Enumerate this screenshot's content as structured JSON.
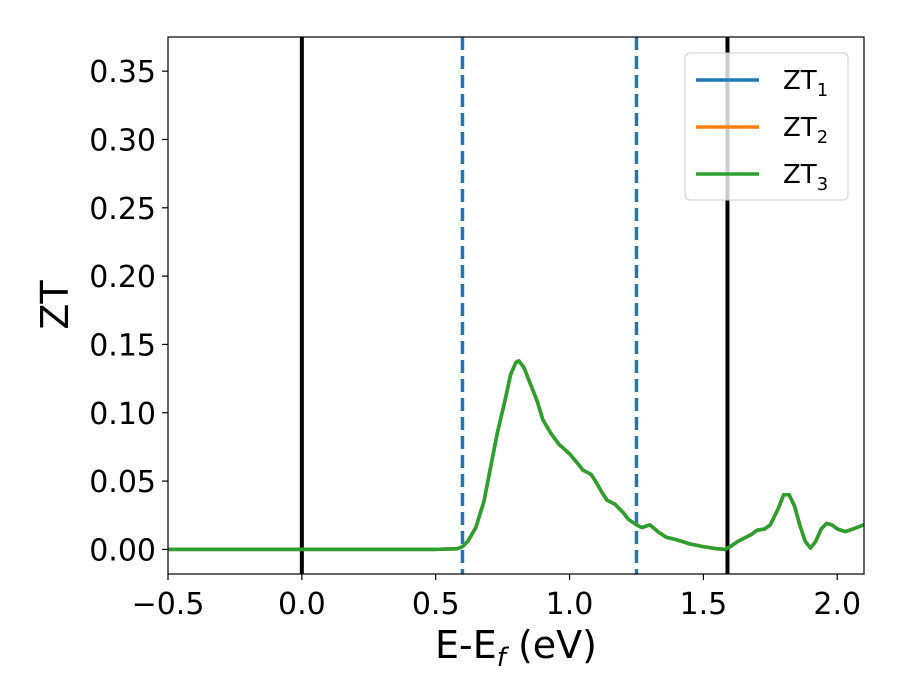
{
  "chart_data": {
    "type": "line",
    "xlabel": "E-E",
    "xlabel_sub": "f",
    "xlabel_unit": " (eV)",
    "ylabel": "ZT",
    "xlim": [
      -0.5,
      2.1
    ],
    "ylim": [
      -0.018,
      0.375
    ],
    "grid": false,
    "legend_position": "top-right",
    "xticks": [
      -0.5,
      0.0,
      0.5,
      1.0,
      1.5,
      2.0
    ],
    "xtick_labels": [
      "−0.5",
      "0.0",
      "0.5",
      "1.0",
      "1.5",
      "2.0"
    ],
    "yticks": [
      0.0,
      0.05,
      0.1,
      0.15,
      0.2,
      0.25,
      0.3,
      0.35
    ],
    "ytick_labels": [
      "0.00",
      "0.05",
      "0.10",
      "0.15",
      "0.20",
      "0.25",
      "0.30",
      "0.35"
    ],
    "vlines": [
      {
        "x": 0.0,
        "style": "solid",
        "color": "#000000"
      },
      {
        "x": 1.59,
        "style": "solid",
        "color": "#000000"
      },
      {
        "x": 0.6,
        "style": "dashed",
        "color": "#1f77b4"
      },
      {
        "x": 1.25,
        "style": "dashed",
        "color": "#1f77b4"
      }
    ],
    "series": [
      {
        "name": "ZT",
        "name_sub": "1",
        "color": "#1f77b4",
        "x": [
          -0.5,
          0.0,
          0.5,
          0.58,
          0.6,
          0.62,
          0.65,
          0.68,
          0.7,
          0.73,
          0.76,
          0.78,
          0.8,
          0.81,
          0.83,
          0.85,
          0.88,
          0.9,
          0.93,
          0.96,
          1.0,
          1.03,
          1.05,
          1.08,
          1.1,
          1.12,
          1.14,
          1.17,
          1.2,
          1.22,
          1.25,
          1.27,
          1.3,
          1.33,
          1.36,
          1.4,
          1.45,
          1.5,
          1.55,
          1.58,
          1.6,
          1.63,
          1.66,
          1.68,
          1.7,
          1.73,
          1.75,
          1.78,
          1.8,
          1.82,
          1.84,
          1.86,
          1.88,
          1.9,
          1.92,
          1.94,
          1.96,
          1.98,
          2.0,
          2.03,
          2.06,
          2.1
        ],
        "y": [
          0.0,
          0.0,
          0.0,
          0.0005,
          0.002,
          0.006,
          0.016,
          0.035,
          0.055,
          0.085,
          0.11,
          0.128,
          0.137,
          0.138,
          0.133,
          0.123,
          0.108,
          0.095,
          0.085,
          0.077,
          0.07,
          0.063,
          0.058,
          0.055,
          0.049,
          0.042,
          0.036,
          0.033,
          0.027,
          0.022,
          0.018,
          0.016,
          0.018,
          0.013,
          0.009,
          0.007,
          0.004,
          0.002,
          0.0005,
          0.0,
          0.002,
          0.006,
          0.009,
          0.011,
          0.014,
          0.015,
          0.018,
          0.03,
          0.04,
          0.04,
          0.032,
          0.018,
          0.006,
          0.001,
          0.006,
          0.015,
          0.019,
          0.018,
          0.015,
          0.013,
          0.015,
          0.018
        ]
      },
      {
        "name": "ZT",
        "name_sub": "2",
        "color": "#ff7f0e",
        "x": [
          -0.5,
          0.0,
          0.5,
          0.58,
          0.6,
          0.62,
          0.65,
          0.68,
          0.7,
          0.73,
          0.76,
          0.78,
          0.8,
          0.81,
          0.83,
          0.85,
          0.88,
          0.9,
          0.93,
          0.96,
          1.0,
          1.03,
          1.05,
          1.08,
          1.1,
          1.12,
          1.14,
          1.17,
          1.2,
          1.22,
          1.25,
          1.27,
          1.3,
          1.33,
          1.36,
          1.4,
          1.45,
          1.5,
          1.55,
          1.58,
          1.6,
          1.63,
          1.66,
          1.68,
          1.7,
          1.73,
          1.75,
          1.78,
          1.8,
          1.82,
          1.84,
          1.86,
          1.88,
          1.9,
          1.92,
          1.94,
          1.96,
          1.98,
          2.0,
          2.03,
          2.06,
          2.1
        ],
        "y": [
          0.0,
          0.0,
          0.0,
          0.0005,
          0.002,
          0.006,
          0.016,
          0.035,
          0.055,
          0.085,
          0.11,
          0.128,
          0.137,
          0.138,
          0.133,
          0.123,
          0.108,
          0.095,
          0.085,
          0.077,
          0.07,
          0.063,
          0.058,
          0.055,
          0.049,
          0.042,
          0.036,
          0.033,
          0.027,
          0.022,
          0.018,
          0.016,
          0.018,
          0.013,
          0.009,
          0.007,
          0.004,
          0.002,
          0.0005,
          0.0,
          0.002,
          0.006,
          0.009,
          0.011,
          0.014,
          0.015,
          0.018,
          0.03,
          0.04,
          0.04,
          0.032,
          0.018,
          0.006,
          0.001,
          0.006,
          0.015,
          0.019,
          0.018,
          0.015,
          0.013,
          0.015,
          0.018
        ]
      },
      {
        "name": "ZT",
        "name_sub": "3",
        "color": "#2ca02c",
        "x": [
          -0.5,
          0.0,
          0.5,
          0.58,
          0.6,
          0.62,
          0.65,
          0.68,
          0.7,
          0.73,
          0.76,
          0.78,
          0.8,
          0.81,
          0.83,
          0.85,
          0.88,
          0.9,
          0.93,
          0.96,
          1.0,
          1.03,
          1.05,
          1.08,
          1.1,
          1.12,
          1.14,
          1.17,
          1.2,
          1.22,
          1.25,
          1.27,
          1.3,
          1.33,
          1.36,
          1.4,
          1.45,
          1.5,
          1.55,
          1.58,
          1.6,
          1.63,
          1.66,
          1.68,
          1.7,
          1.73,
          1.75,
          1.78,
          1.8,
          1.82,
          1.84,
          1.86,
          1.88,
          1.9,
          1.92,
          1.94,
          1.96,
          1.98,
          2.0,
          2.03,
          2.06,
          2.1
        ],
        "y": [
          0.0,
          0.0,
          0.0,
          0.0005,
          0.002,
          0.006,
          0.016,
          0.035,
          0.055,
          0.085,
          0.11,
          0.128,
          0.137,
          0.138,
          0.133,
          0.123,
          0.108,
          0.095,
          0.085,
          0.077,
          0.07,
          0.063,
          0.058,
          0.055,
          0.049,
          0.042,
          0.036,
          0.033,
          0.027,
          0.022,
          0.018,
          0.016,
          0.018,
          0.013,
          0.009,
          0.007,
          0.004,
          0.002,
          0.0005,
          0.0,
          0.002,
          0.006,
          0.009,
          0.011,
          0.014,
          0.015,
          0.018,
          0.03,
          0.04,
          0.04,
          0.032,
          0.018,
          0.006,
          0.001,
          0.006,
          0.015,
          0.019,
          0.018,
          0.015,
          0.013,
          0.015,
          0.018
        ]
      }
    ]
  }
}
